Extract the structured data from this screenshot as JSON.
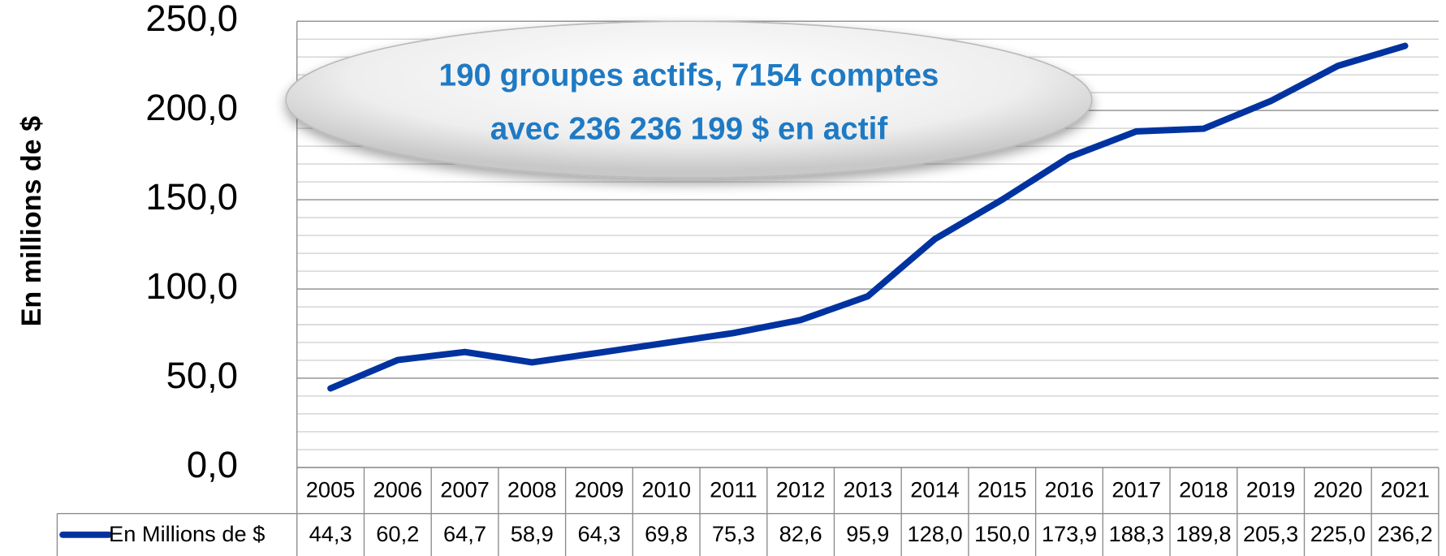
{
  "chart_data": {
    "type": "line",
    "y_label": "En millions de $",
    "annotation": [
      "190 groupes actifs, 7154 comptes",
      "avec 236 236 199 $ en actif"
    ],
    "categories": [
      "2005",
      "2006",
      "2007",
      "2008",
      "2009",
      "2010",
      "2011",
      "2012",
      "2013",
      "2014",
      "2015",
      "2016",
      "2017",
      "2018",
      "2019",
      "2020",
      "2021"
    ],
    "series": [
      {
        "name": "En Millions de $",
        "color": "#0033a0",
        "values": [
          44.3,
          60.2,
          64.7,
          58.9,
          64.3,
          69.8,
          75.3,
          82.6,
          95.9,
          128.0,
          150.0,
          173.9,
          188.3,
          189.8,
          205.3,
          225.0,
          236.2
        ],
        "value_labels": [
          "44,3",
          "60,2",
          "64,7",
          "58,9",
          "64,3",
          "69,8",
          "75,3",
          "82,6",
          "95,9",
          "128,0",
          "150,0",
          "173,9",
          "188,3",
          "189,8",
          "205,3",
          "225,0",
          "236,2"
        ]
      }
    ],
    "ylim": [
      0,
      250
    ],
    "yticks": [
      {
        "value": 0,
        "label": "0,0"
      },
      {
        "value": 50,
        "label": "50,0"
      },
      {
        "value": 100,
        "label": "100,0"
      },
      {
        "value": 150,
        "label": "150,0"
      },
      {
        "value": 200,
        "label": "200,0"
      },
      {
        "value": 250,
        "label": "250,0"
      }
    ],
    "minor_yticks": [
      10,
      20,
      30,
      40,
      60,
      70,
      80,
      90,
      110,
      120,
      130,
      140,
      160,
      170,
      180,
      190,
      210,
      220,
      230,
      240
    ],
    "grid": true,
    "data_table": true
  }
}
